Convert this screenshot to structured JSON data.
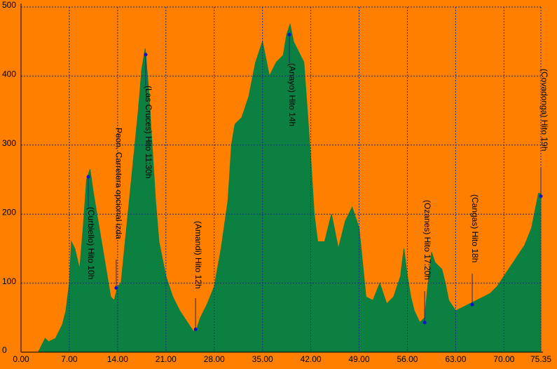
{
  "chart_data": {
    "type": "area",
    "color": "#0b8040",
    "background": "#ff8000",
    "grid": true,
    "x": [
      2.5,
      3.0,
      3.5,
      4.0,
      5.0,
      6.0,
      6.5,
      7.0,
      7.3,
      7.8,
      8.5,
      9.0,
      9.5,
      10.0,
      10.5,
      11.0,
      11.5,
      12.0,
      12.5,
      13.0,
      13.5,
      14.0,
      14.5,
      15.0,
      16.0,
      17.0,
      17.5,
      18.0,
      18.5,
      19.0,
      19.5,
      20.0,
      21.0,
      22.0,
      23.0,
      24.0,
      25.0,
      25.5,
      26.0,
      27.0,
      28.0,
      29.0,
      30.0,
      30.5,
      31.0,
      32.0,
      33.0,
      34.0,
      35.0,
      36.0,
      37.0,
      38.0,
      38.5,
      39.0,
      39.5,
      40.0,
      41.0,
      41.5,
      42.0,
      42.5,
      43.0,
      44.0,
      45.0,
      46.0,
      47.0,
      48.0,
      49.0,
      49.5,
      50.0,
      51.0,
      52.0,
      53.0,
      54.0,
      55.0,
      55.5,
      56.0,
      56.5,
      57.0,
      57.8,
      58.5,
      59.0,
      59.5,
      60.0,
      61.0,
      61.5,
      62.0,
      63.0,
      64.0,
      65.0,
      66.0,
      67.0,
      68.0,
      69.0,
      70.0,
      71.0,
      72.0,
      73.0,
      74.0,
      75.0,
      75.35
    ],
    "y": [
      0,
      10,
      20,
      15,
      20,
      40,
      60,
      100,
      160,
      150,
      120,
      180,
      250,
      265,
      230,
      200,
      170,
      140,
      110,
      80,
      75,
      95,
      100,
      150,
      250,
      350,
      410,
      440,
      380,
      300,
      220,
      160,
      110,
      80,
      60,
      45,
      30,
      35,
      50,
      70,
      95,
      150,
      220,
      300,
      330,
      340,
      370,
      420,
      450,
      400,
      420,
      430,
      460,
      475,
      450,
      440,
      420,
      350,
      280,
      200,
      160,
      160,
      200,
      150,
      190,
      210,
      180,
      130,
      80,
      75,
      100,
      70,
      80,
      110,
      150,
      110,
      80,
      60,
      43,
      50,
      100,
      145,
      130,
      120,
      100,
      75,
      60,
      65,
      70,
      75,
      80,
      85,
      95,
      110,
      125,
      140,
      155,
      180,
      230,
      230
    ],
    "xlim": [
      0,
      75.35
    ],
    "xticks": [
      {
        "value": 0,
        "label": "0.00"
      },
      {
        "value": 7,
        "label": "7.00"
      },
      {
        "value": 14,
        "label": "14.00"
      },
      {
        "value": 21,
        "label": "21.00"
      },
      {
        "value": 28,
        "label": "28.00"
      },
      {
        "value": 35,
        "label": "35.00"
      },
      {
        "value": 42,
        "label": "42.00"
      },
      {
        "value": 49,
        "label": "49.00"
      },
      {
        "value": 56,
        "label": "56.00"
      },
      {
        "value": 63,
        "label": "63.00"
      },
      {
        "value": 70,
        "label": "70.00"
      },
      75.35
    ],
    "ylim": [
      0,
      500
    ],
    "yticks": [
      0,
      100,
      200,
      300,
      400,
      500
    ],
    "annotations": [
      {
        "label": "(Curbiello) Hito 10h",
        "x": 9.75,
        "y": 254
      },
      {
        "label": "Peon. Carretera opcional izda",
        "x": 13.8,
        "y": 93
      },
      {
        "label": "(Las Cruces) Hito 11:30h",
        "x": 18.07,
        "y": 431
      },
      {
        "label": "(Amandi) Hito 12h",
        "x": 25.3,
        "y": 33
      },
      {
        "label": "(Anayo) Hito 14h",
        "x": 38.9,
        "y": 460
      },
      {
        "label": "(Ozanes) Hito 17:20h",
        "x": 58.5,
        "y": 43
      },
      {
        "label": "(Cangas) Hito 18h",
        "x": 65.4,
        "y": 69
      },
      {
        "label": "(Covadonga) Hito 19h",
        "x": 75.35,
        "y": 226
      }
    ]
  }
}
